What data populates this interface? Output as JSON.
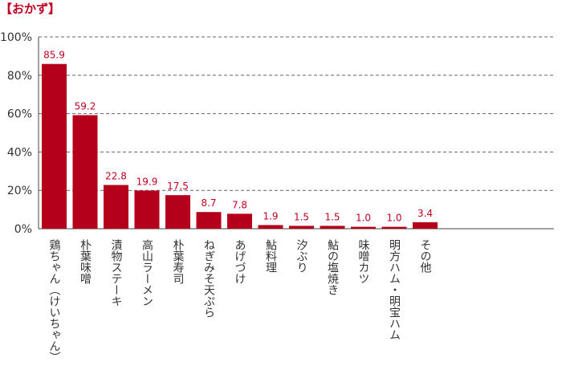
{
  "chart_data": {
    "type": "bar",
    "title": "【おかず】",
    "categories": [
      "鶏ちゃん（けいちゃん）",
      "朴葉味噌",
      "漬物ステーキ",
      "高山ラーメン",
      "朴葉寿司",
      "ねぎみそ天ぷら",
      "あげづけ",
      "鮎料理",
      "汐ぶり",
      "鮎の塩焼き",
      "味噌カツ",
      "明方ハム・明宝ハム",
      "その他"
    ],
    "values": [
      85.9,
      59.2,
      22.8,
      19.9,
      17.5,
      8.7,
      7.8,
      1.9,
      1.5,
      1.5,
      1.0,
      1.0,
      3.4
    ],
    "value_labels": [
      "85.9",
      "59.2",
      "22.8",
      "19.9",
      "17.5",
      "8.7",
      "7.8",
      "1.9",
      "1.5",
      "1.5",
      "1.0",
      "1.0",
      "3.4"
    ],
    "ylim": [
      0,
      100
    ],
    "yticks": [
      0,
      20,
      40,
      60,
      80,
      100
    ],
    "ytick_labels": [
      "0%",
      "20%",
      "40%",
      "60%",
      "80%",
      "100%"
    ],
    "grid": true,
    "grid_style": "dashed",
    "bar_color": "#b5001b",
    "title_color": "#c00020",
    "label_color": "#c00020"
  }
}
